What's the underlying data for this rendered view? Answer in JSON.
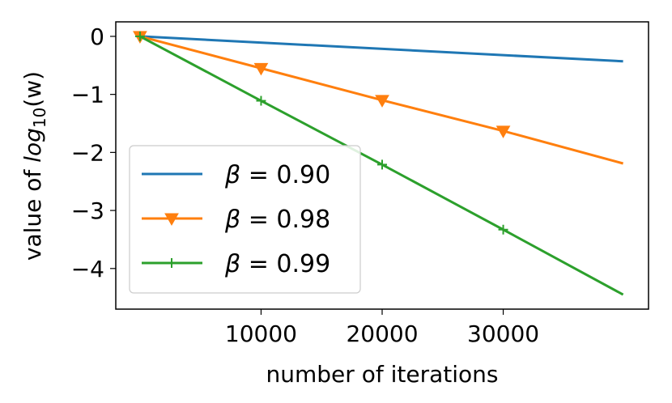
{
  "chart_data": {
    "type": "line",
    "xlabel": "number of iterations",
    "ylabel_prefix": "value of ",
    "ylabel_func": "log",
    "ylabel_sub": "10",
    "ylabel_arg": "(w)",
    "xlim": [
      -2000,
      42000
    ],
    "ylim": [
      -4.7,
      0.25
    ],
    "xticks": [
      10000,
      20000,
      30000
    ],
    "xtick_labels": [
      "10000",
      "20000",
      "30000"
    ],
    "yticks": [
      0,
      -1,
      -2,
      -3,
      -4
    ],
    "ytick_labels": [
      "0",
      "−1",
      "−2",
      "−3",
      "−4"
    ],
    "legend_position": "lower-left",
    "series": [
      {
        "name": "β = 0.90",
        "beta_symbol": "β",
        "beta_value": "0.90",
        "color": "#1f77b4",
        "marker": "none",
        "x": [
          0,
          39900
        ],
        "y": [
          0,
          -0.43
        ]
      },
      {
        "name": "β = 0.98",
        "beta_symbol": "β",
        "beta_value": "0.98",
        "color": "#ff7f0e",
        "marker": "triangle-down",
        "x": [
          0,
          10000,
          20000,
          30000,
          39900
        ],
        "y": [
          0,
          -0.55,
          -1.1,
          -1.63,
          -2.19
        ]
      },
      {
        "name": "β = 0.99",
        "beta_symbol": "β",
        "beta_value": "0.99",
        "color": "#2ca02c",
        "marker": "plus",
        "x": [
          0,
          10000,
          20000,
          30000,
          39900
        ],
        "y": [
          0,
          -1.11,
          -2.21,
          -3.33,
          -4.45
        ]
      }
    ]
  }
}
